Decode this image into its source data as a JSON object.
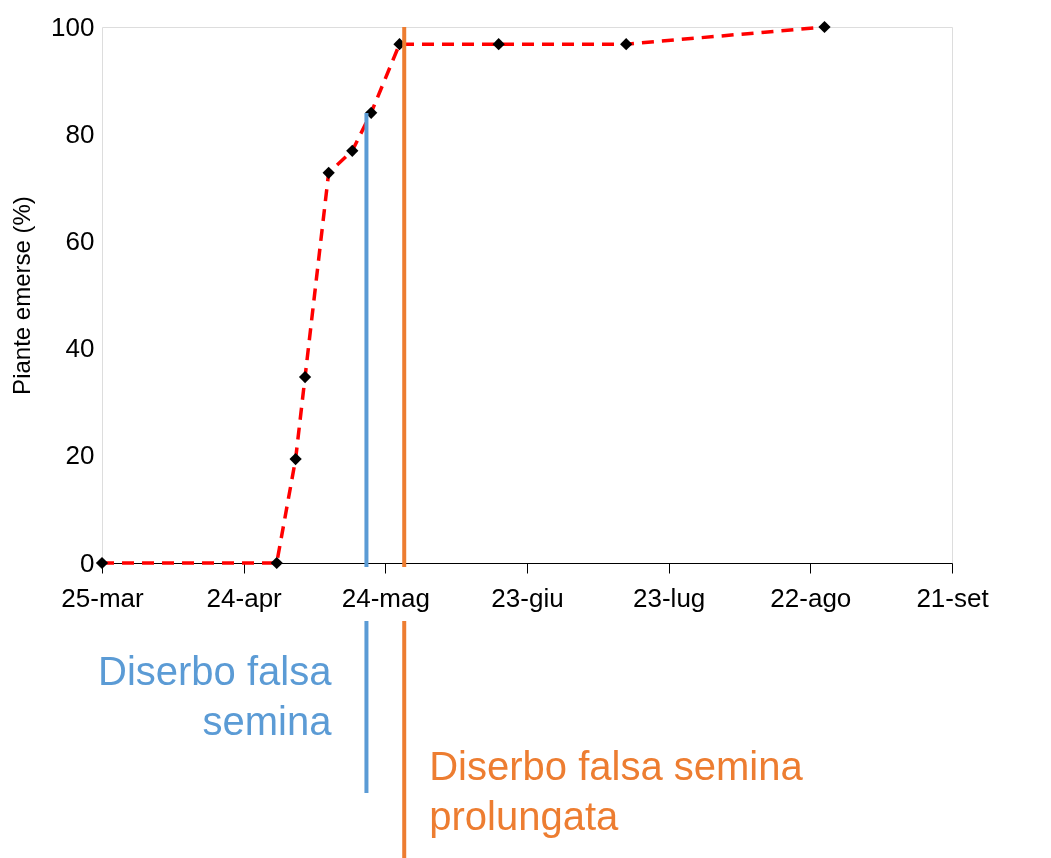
{
  "chart_data": {
    "type": "line",
    "ylabel": "Piante emerse (%)",
    "x": [
      "--03-25",
      "--05-01",
      "--05-05",
      "--05-07",
      "--05-12",
      "--05-17",
      "--05-21",
      "--05-27",
      "--06-17",
      "--07-14",
      "--08-25"
    ],
    "series": [
      {
        "color": "#ff0000",
        "values": [
          0,
          0,
          19.4,
          34.7,
          72.8,
          76.9,
          84,
          96.8,
          96.8,
          96.8,
          100
        ]
      }
    ],
    "marker": "diamond",
    "line_style": "dashed",
    "grid": false,
    "xlim": [
      "--03-25",
      "--09-21"
    ],
    "xticks": [
      {
        "value": "--03-25",
        "label": "25-mar"
      },
      {
        "value": "--04-24",
        "label": "24-apr"
      },
      {
        "value": "--05-24",
        "label": "24-mag"
      },
      {
        "value": "--06-23",
        "label": "23-giu"
      },
      {
        "value": "--07-23",
        "label": "23-lug"
      },
      {
        "value": "--08-22",
        "label": "22-ago"
      },
      {
        "value": "--09-21",
        "label": "21-set"
      }
    ],
    "ylim": [
      0,
      100
    ],
    "yticks": [
      0,
      20,
      40,
      60,
      80,
      100
    ],
    "ref_lines": [
      {
        "axis": "x",
        "value": "--05-20",
        "label": "Diserbo falsa semina",
        "color": "#5b9bd5"
      },
      {
        "axis": "x",
        "value": "--05-28",
        "label": "Diserbo falsa semina prolungata",
        "color": "#ed7d31"
      }
    ]
  }
}
